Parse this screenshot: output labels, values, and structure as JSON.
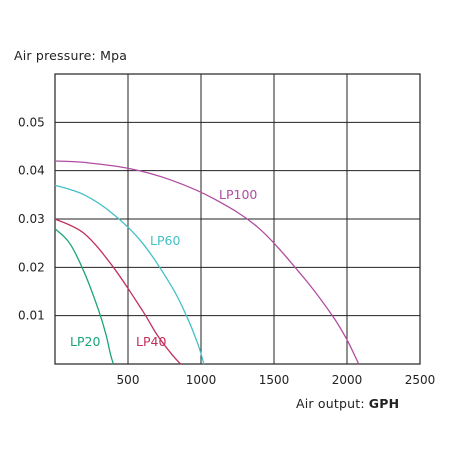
{
  "chart_data": {
    "type": "line",
    "ylabel": "Air pressure: Mpa",
    "xlabel": "Air output:",
    "xlabel_unit": "GPH",
    "xlim": [
      0,
      2500
    ],
    "ylim": [
      0,
      0.06
    ],
    "xticks": [
      500,
      1000,
      1500,
      2000,
      2500
    ],
    "yticks": [
      0.01,
      0.02,
      0.03,
      0.04,
      0.05
    ],
    "xtick_labels": [
      "500",
      "1000",
      "1500",
      "2000",
      "2500"
    ],
    "ytick_labels": [
      "0.01",
      "0.02",
      "0.03",
      "0.04",
      "0.05"
    ],
    "grid": true,
    "series": [
      {
        "name": "LP20",
        "color": "#1aa37a",
        "x": [
          0,
          100,
          200,
          300,
          350,
          380,
          400
        ],
        "y": [
          0.028,
          0.025,
          0.019,
          0.011,
          0.006,
          0.002,
          0
        ]
      },
      {
        "name": "LP40",
        "color": "#c2305a",
        "x": [
          0,
          200,
          400,
          600,
          700,
          800,
          860
        ],
        "y": [
          0.03,
          0.027,
          0.02,
          0.011,
          0.006,
          0.002,
          0
        ]
      },
      {
        "name": "LP60",
        "color": "#44c0c8",
        "x": [
          0,
          200,
          400,
          600,
          800,
          900,
          980,
          1020
        ],
        "y": [
          0.037,
          0.035,
          0.031,
          0.025,
          0.016,
          0.01,
          0.004,
          0
        ]
      },
      {
        "name": "LP100",
        "color": "#b04ca0",
        "x": [
          0,
          200,
          500,
          800,
          1100,
          1400,
          1700,
          1900,
          2000,
          2080
        ],
        "y": [
          0.042,
          0.0417,
          0.0405,
          0.038,
          0.034,
          0.028,
          0.018,
          0.01,
          0.005,
          0
        ]
      }
    ]
  }
}
